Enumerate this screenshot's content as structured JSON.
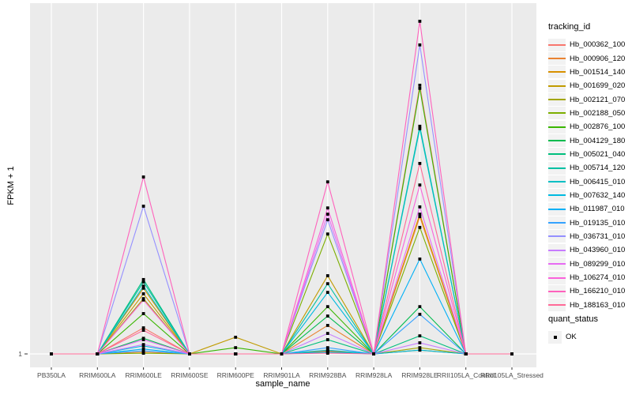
{
  "figure": {
    "background": "#FFFFFF",
    "panel_bg": "#EBEBEB",
    "grid_color": "#FFFFFF",
    "tick_color": "#333333",
    "tick_label_color": "#4D4D4D",
    "point_color": "#000000",
    "legend_key_bg": "#F2F2F2"
  },
  "chart_data": {
    "type": "line",
    "title": "",
    "xlabel": "sample_name",
    "ylabel": "FPKM + 1",
    "x_categories": [
      "PB350LA",
      "RRIM600LA",
      "RRIM600LE",
      "RRIM600SE",
      "RRIM600PE",
      "RRIM901LA",
      "RRIM928BA",
      "RRIM928LA",
      "RRIM928LE",
      "RRII105LA_Control",
      "RRII105LA_Stressed"
    ],
    "y_axis": {
      "tick_labels": [
        "1"
      ],
      "note": "Only the value 1 is labeled on the y axis; series values below are relative peak heights where 0 = baseline (FPKM+1 = 1) and 1 = panel top.",
      "ylim_frac": [
        0,
        1.05
      ]
    },
    "legend_position": "right",
    "grid": "vertical-major-only",
    "legend_title": "tracking_id",
    "quant_legend": {
      "title": "quant_status",
      "items": [
        "OK"
      ]
    },
    "point_shape": "filled-square",
    "series": [
      {
        "name": "Hb_000362_100",
        "color": "#F8766D",
        "values": [
          0,
          0,
          0.075,
          0,
          0,
          0,
          0.009,
          0,
          0.773,
          0,
          0
        ]
      },
      {
        "name": "Hb_000906_120",
        "color": "#EA8331",
        "values": [
          0,
          0,
          0.005,
          0,
          0,
          0,
          0.082,
          0,
          0.395,
          0,
          0
        ]
      },
      {
        "name": "Hb_001514_140",
        "color": "#D89000",
        "values": [
          0,
          0,
          0.189,
          0,
          0,
          0,
          0.007,
          0,
          0.402,
          0,
          0
        ]
      },
      {
        "name": "Hb_001699_020",
        "color": "#C09B00",
        "values": [
          0,
          0,
          0.173,
          0,
          0.048,
          0,
          0.225,
          0,
          0.011,
          0,
          0
        ]
      },
      {
        "name": "Hb_002121_070",
        "color": "#A3A500",
        "values": [
          0,
          0,
          0.159,
          0,
          0,
          0,
          0.005,
          0,
          0.018,
          0,
          0
        ]
      },
      {
        "name": "Hb_002188_050",
        "color": "#7CAE00",
        "values": [
          0,
          0,
          0.002,
          0,
          0,
          0,
          0.345,
          0,
          0.364,
          0,
          0
        ]
      },
      {
        "name": "Hb_002876_100",
        "color": "#39B600",
        "values": [
          0,
          0,
          0.116,
          0,
          0.018,
          0,
          0.136,
          0,
          0.764,
          0,
          0
        ]
      },
      {
        "name": "Hb_004129_180",
        "color": "#00BB4E",
        "values": [
          0,
          0,
          0.045,
          0,
          0,
          0,
          0.109,
          0,
          0.136,
          0,
          0
        ]
      },
      {
        "name": "Hb_005021_040",
        "color": "#00BF7D",
        "values": [
          0,
          0,
          0.214,
          0,
          0,
          0,
          0.041,
          0,
          0.052,
          0,
          0
        ]
      },
      {
        "name": "Hb_005714_120",
        "color": "#00C1A3",
        "values": [
          0,
          0,
          0.207,
          0,
          0,
          0,
          0.202,
          0,
          0.655,
          0,
          0
        ]
      },
      {
        "name": "Hb_006415_010",
        "color": "#00BFC4",
        "values": [
          0,
          0,
          0.195,
          0,
          0,
          0,
          0.011,
          0,
          0.648,
          0,
          0
        ]
      },
      {
        "name": "Hb_007632_140",
        "color": "#00BAE0",
        "values": [
          0,
          0,
          0.023,
          0,
          0,
          0,
          0.177,
          0,
          0.011,
          0,
          0
        ]
      },
      {
        "name": "Hb_011987_010",
        "color": "#00B0F6",
        "values": [
          0,
          0,
          0.014,
          0,
          0,
          0,
          0.005,
          0,
          0.273,
          0,
          0
        ]
      },
      {
        "name": "Hb_019135_010",
        "color": "#35A2FF",
        "values": [
          0,
          0,
          0.009,
          0,
          0,
          0,
          0.018,
          0,
          0.114,
          0,
          0
        ]
      },
      {
        "name": "Hb_036731_010",
        "color": "#9590FF",
        "values": [
          0,
          0,
          0.425,
          0,
          0,
          0,
          0.386,
          0,
          0.889,
          0,
          0
        ]
      },
      {
        "name": "Hb_043960_010",
        "color": "#C77CFF",
        "values": [
          0,
          0,
          0.027,
          0,
          0,
          0,
          0.059,
          0,
          0.032,
          0,
          0
        ]
      },
      {
        "name": "Hb_089299_010",
        "color": "#E76BF3",
        "values": [
          0,
          0,
          0.041,
          0,
          0,
          0,
          0.402,
          0,
          0.423,
          0,
          0
        ]
      },
      {
        "name": "Hb_106274_010",
        "color": "#FA62DB",
        "values": [
          0,
          0,
          0.155,
          0,
          0,
          0,
          0.42,
          0,
          0.486,
          0,
          0
        ]
      },
      {
        "name": "Hb_166210_010",
        "color": "#FF62BC",
        "values": [
          0,
          0,
          0.509,
          0,
          0,
          0,
          0.495,
          0,
          0.957,
          0,
          0
        ]
      },
      {
        "name": "Hb_188163_010",
        "color": "#FF6A98",
        "values": [
          0,
          0,
          0.068,
          0,
          0,
          0,
          0.002,
          0,
          0.548,
          0,
          0
        ]
      }
    ]
  }
}
